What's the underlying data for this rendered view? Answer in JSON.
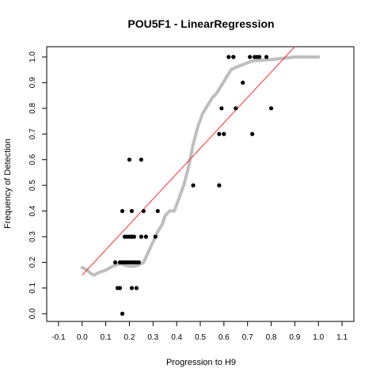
{
  "chart_data": {
    "type": "scatter",
    "title": "POU5F1 - LinearRegression",
    "xlabel": "Progression to H9",
    "ylabel": "Frequency of Detection",
    "xlim": [
      -0.15,
      1.15
    ],
    "ylim": [
      -0.03,
      1.04
    ],
    "x_ticks": [
      "-0.1",
      "0.0",
      "0.1",
      "0.2",
      "0.3",
      "0.4",
      "0.5",
      "0.6",
      "0.7",
      "0.8",
      "0.9",
      "1.0",
      "1.1"
    ],
    "y_ticks": [
      "0.0",
      "0.1",
      "0.2",
      "0.3",
      "0.4",
      "0.5",
      "0.6",
      "0.7",
      "0.8",
      "0.9",
      "1.0"
    ],
    "grid": false,
    "colors": {
      "points": "#000000",
      "smooth": "#bebebe",
      "regression": "#ff3030"
    },
    "series": [
      {
        "kind": "points",
        "x": [
          0.17,
          0.15,
          0.16,
          0.17,
          0.18,
          0.19,
          0.2,
          0.21,
          0.22,
          0.23,
          0.24,
          0.14,
          0.19,
          0.21,
          0.18,
          0.2,
          0.21,
          0.22,
          0.25,
          0.27,
          0.31,
          0.17,
          0.21,
          0.26,
          0.32,
          0.2,
          0.25,
          0.47,
          0.58,
          0.58,
          0.6,
          0.59,
          0.72,
          0.65,
          0.8,
          0.64,
          0.68,
          0.62,
          0.64,
          0.71,
          0.73,
          0.74,
          0.75,
          0.78,
          0.16,
          0.21,
          0.23
        ],
        "y": [
          0.0,
          0.1,
          0.2,
          0.2,
          0.2,
          0.2,
          0.2,
          0.2,
          0.2,
          0.2,
          0.2,
          0.2,
          0.3,
          0.3,
          0.3,
          0.3,
          0.3,
          0.3,
          0.3,
          0.3,
          0.3,
          0.4,
          0.4,
          0.4,
          0.4,
          0.6,
          0.6,
          0.5,
          0.5,
          0.7,
          0.7,
          0.8,
          0.7,
          0.8,
          0.8,
          1.0,
          0.9,
          1.0,
          1.0,
          1.0,
          1.0,
          1.0,
          1.0,
          1.0,
          0.1,
          0.1,
          0.1
        ]
      },
      {
        "kind": "smooth-curve",
        "x": [
          0.0,
          0.02,
          0.04,
          0.05,
          0.07,
          0.1,
          0.13,
          0.16,
          0.18,
          0.2,
          0.22,
          0.24,
          0.26,
          0.28,
          0.3,
          0.32,
          0.34,
          0.35,
          0.37,
          0.39,
          0.41,
          0.43,
          0.45,
          0.47,
          0.49,
          0.51,
          0.53,
          0.55,
          0.57,
          0.59,
          0.61,
          0.63,
          0.65,
          0.68,
          0.72,
          0.8,
          0.9,
          1.0
        ],
        "y": [
          0.18,
          0.17,
          0.155,
          0.15,
          0.16,
          0.17,
          0.185,
          0.195,
          0.19,
          0.185,
          0.185,
          0.19,
          0.2,
          0.24,
          0.28,
          0.32,
          0.35,
          0.38,
          0.4,
          0.4,
          0.45,
          0.5,
          0.57,
          0.66,
          0.73,
          0.78,
          0.81,
          0.84,
          0.86,
          0.89,
          0.92,
          0.95,
          0.96,
          0.97,
          0.985,
          0.99,
          1.0,
          1.0
        ]
      },
      {
        "kind": "regression-line",
        "x": [
          0.0,
          0.9
        ],
        "y": [
          0.15,
          1.04
        ]
      }
    ]
  }
}
